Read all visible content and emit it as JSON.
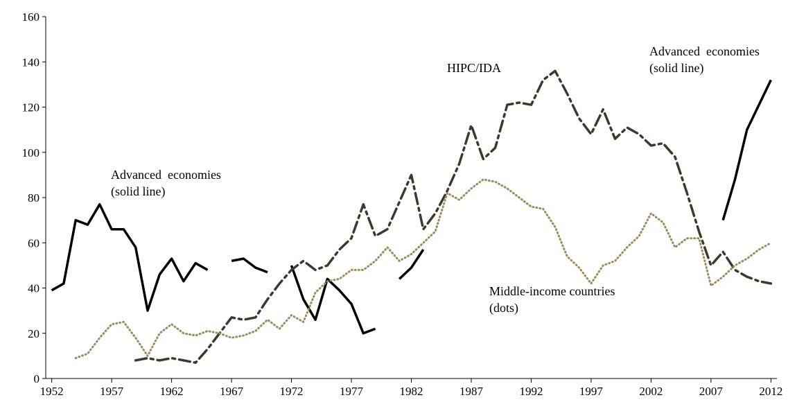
{
  "chart_data": {
    "type": "line",
    "x": [
      1952,
      1953,
      1954,
      1955,
      1956,
      1957,
      1958,
      1959,
      1960,
      1961,
      1962,
      1963,
      1964,
      1965,
      1966,
      1967,
      1968,
      1969,
      1970,
      1971,
      1972,
      1973,
      1974,
      1975,
      1976,
      1977,
      1978,
      1979,
      1980,
      1981,
      1982,
      1983,
      1984,
      1985,
      1986,
      1987,
      1988,
      1989,
      1990,
      1991,
      1992,
      1993,
      1994,
      1995,
      1996,
      1997,
      1998,
      1999,
      2000,
      2001,
      2002,
      2003,
      2004,
      2005,
      2006,
      2007,
      2008,
      2009,
      2010,
      2011,
      2012
    ],
    "series": [
      {
        "color": "#000000",
        "style": "solid",
        "values": [
          39,
          42,
          70,
          68,
          77,
          66,
          66,
          58,
          30,
          46,
          53,
          43,
          51,
          48,
          null,
          52,
          53,
          49,
          47,
          null,
          50,
          35,
          26,
          44,
          39,
          33,
          20,
          22,
          null,
          44,
          49,
          57,
          null,
          null,
          null,
          null,
          null,
          null,
          null,
          null,
          null,
          null,
          null,
          null,
          null,
          null,
          null,
          null,
          null,
          null,
          null,
          null,
          null,
          null,
          null,
          null,
          70,
          88,
          110,
          121,
          132
        ]
      },
      {
        "color": "#3d3a2a",
        "style": "dashdot",
        "values": [
          null,
          null,
          null,
          null,
          null,
          null,
          null,
          8,
          9,
          8,
          9,
          8,
          7,
          13,
          20,
          27,
          26,
          27,
          35,
          42,
          48,
          52,
          48,
          50,
          57,
          62,
          77,
          63,
          66,
          78,
          90,
          66,
          73,
          83,
          95,
          112,
          97,
          102,
          121,
          122,
          121,
          132,
          136,
          126,
          115,
          108,
          119,
          106,
          111,
          108,
          103,
          104,
          98,
          82,
          65,
          50,
          56,
          48,
          45,
          43,
          42
        ]
      },
      {
        "color": "#9b8c5c",
        "style": "dotted",
        "values": [
          null,
          null,
          9,
          11,
          18,
          24,
          25,
          18,
          10,
          20,
          24,
          20,
          19,
          21,
          20,
          18,
          19,
          21,
          26,
          22,
          28,
          25,
          38,
          43,
          44,
          48,
          48,
          52,
          58,
          52,
          55,
          60,
          65,
          82,
          79,
          84,
          88,
          87,
          84,
          80,
          76,
          75,
          67,
          54,
          49,
          42,
          50,
          52,
          58,
          63,
          73,
          69,
          58,
          62,
          62,
          41,
          45,
          50,
          53,
          57,
          60
        ]
      }
    ],
    "xlim": [
      1951.5,
      2012.5
    ],
    "xticks": [
      1952,
      1957,
      1962,
      1967,
      1972,
      1977,
      1982,
      1987,
      1992,
      1997,
      2002,
      2007,
      2012
    ],
    "ylim": [
      0,
      160
    ],
    "yticks": [
      0,
      20,
      40,
      60,
      80,
      100,
      120,
      140,
      160
    ],
    "annotations": [
      {
        "lines": [
          "HIPC/IDA"
        ]
      },
      {
        "lines": [
          "Advanced  economies",
          "(solid line)"
        ]
      },
      {
        "lines": [
          "Advanced  economies",
          "(solid line)"
        ]
      },
      {
        "lines": [
          "Middle-income countries",
          "(dots)"
        ]
      }
    ]
  }
}
